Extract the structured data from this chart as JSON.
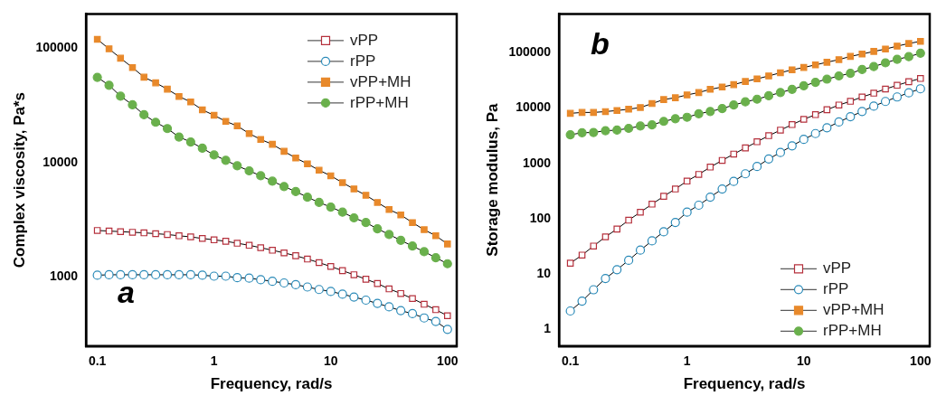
{
  "chart_data": [
    {
      "type": "line",
      "xlabel": "Frequency, rad/s",
      "ylabel": "Complex viscosity, Pa*s",
      "annotations": [
        "a"
      ],
      "log": "xy",
      "legend": "top right",
      "grid": false,
      "x": [
        0.1,
        0.126,
        0.158,
        0.2,
        0.251,
        0.316,
        0.398,
        0.501,
        0.631,
        0.794,
        1,
        1.26,
        1.58,
        2,
        2.51,
        3.16,
        3.98,
        5.01,
        6.31,
        7.94,
        10,
        12.6,
        15.8,
        20,
        25.1,
        31.6,
        39.8,
        50.1,
        63.1,
        79.4,
        100
      ],
      "xlim": [
        0.08,
        120
      ],
      "xticks": [
        0.1,
        1,
        10,
        100
      ],
      "ylim": [
        250,
        200000
      ],
      "yticks": [
        1000,
        10000,
        100000
      ],
      "series": [
        {
          "name": "vPP",
          "color": "#b5303c",
          "marker": "square",
          "values": [
            2560,
            2530,
            2500,
            2470,
            2440,
            2400,
            2360,
            2300,
            2250,
            2180,
            2120,
            2060,
            1980,
            1900,
            1810,
            1720,
            1630,
            1540,
            1440,
            1340,
            1240,
            1140,
            1050,
            960,
            880,
            790,
            720,
            650,
            580,
            520,
            460
          ]
        },
        {
          "name": "rPP",
          "color": "#2a8ab8",
          "marker": "circle",
          "values": [
            1040,
            1050,
            1050,
            1050,
            1050,
            1050,
            1050,
            1050,
            1050,
            1040,
            1020,
            1020,
            990,
            980,
            950,
            920,
            890,
            860,
            820,
            780,
            750,
            710,
            670,
            630,
            590,
            550,
            510,
            480,
            440,
            410,
            350
          ]
        },
        {
          "name": "vPP+MH",
          "color": "#e8892b",
          "marker": "square",
          "values": [
            120000,
            99000,
            82000,
            68000,
            56000,
            50000,
            44000,
            38000,
            34000,
            29000,
            26000,
            23000,
            21000,
            18000,
            16000,
            14500,
            12600,
            11000,
            9800,
            8600,
            7700,
            6700,
            5900,
            5200,
            4500,
            3900,
            3500,
            3000,
            2600,
            2300,
            1950
          ]
        },
        {
          "name": "rPP+MH",
          "color": "#6ab04c",
          "marker": "circle",
          "values": [
            55800,
            47600,
            38200,
            32100,
            26300,
            22600,
            19900,
            16800,
            15200,
            13400,
            11700,
            10500,
            9400,
            8500,
            7700,
            6900,
            6200,
            5600,
            5000,
            4500,
            4100,
            3700,
            3300,
            3000,
            2650,
            2360,
            2100,
            1870,
            1670,
            1480,
            1310
          ]
        }
      ]
    },
    {
      "type": "line",
      "xlabel": "Frequency, rad/s",
      "ylabel": "Storage modulus, Pa",
      "annotations": [
        "b"
      ],
      "log": "xy",
      "legend": "bottom right",
      "grid": false,
      "x": [
        0.1,
        0.126,
        0.158,
        0.2,
        0.251,
        0.316,
        0.398,
        0.501,
        0.631,
        0.794,
        1,
        1.26,
        1.58,
        2,
        2.51,
        3.16,
        3.98,
        5.01,
        6.31,
        7.94,
        10,
        12.6,
        15.8,
        20,
        25.1,
        31.6,
        39.8,
        50.1,
        63.1,
        79.4,
        100
      ],
      "xlim": [
        0.08,
        120
      ],
      "xticks": [
        0.1,
        1,
        10,
        100
      ],
      "ylim": [
        0.5,
        500000
      ],
      "yticks": [
        1,
        10,
        100,
        1000,
        10000,
        100000
      ],
      "series": [
        {
          "name": "vPP",
          "color": "#b5303c",
          "marker": "square",
          "values": [
            15.7,
            22,
            32,
            47,
            65,
            94,
            131,
            183,
            254,
            344,
            478,
            631,
            855,
            1130,
            1470,
            1900,
            2450,
            3160,
            3980,
            5010,
            6240,
            7570,
            9300,
            11300,
            13200,
            15800,
            18500,
            22000,
            25700,
            29800,
            34100
          ]
        },
        {
          "name": "rPP",
          "color": "#2a8ab8",
          "marker": "circle",
          "values": [
            2.15,
            3.24,
            5.2,
            8.3,
            12,
            17.7,
            27,
            39.8,
            58,
            85.5,
            131,
            175,
            245,
            344,
            472,
            647,
            875,
            1200,
            1570,
            2070,
            2710,
            3450,
            4390,
            5590,
            6960,
            8650,
            10800,
            13100,
            15800,
            18800,
            22200
          ]
        },
        {
          "name": "vPP+MH",
          "color": "#e8892b",
          "marker": "square",
          "values": [
            8000,
            8300,
            8300,
            8600,
            9000,
            9500,
            10200,
            12000,
            14200,
            15300,
            17200,
            19000,
            21700,
            23900,
            26400,
            30100,
            33600,
            37900,
            43300,
            48900,
            53900,
            60100,
            67000,
            74800,
            85500,
            94200,
            105000,
            116000,
            131000,
            146000,
            160000
          ]
        },
        {
          "name": "rPP+MH",
          "color": "#6ab04c",
          "marker": "circle",
          "values": [
            3280,
            3570,
            3610,
            3880,
            3980,
            4280,
            4720,
            4950,
            5730,
            6390,
            6790,
            7850,
            8650,
            9760,
            11300,
            12900,
            14400,
            16600,
            19000,
            21700,
            25100,
            29100,
            33200,
            37900,
            42300,
            49500,
            55900,
            65400,
            75700,
            84400,
            97500
          ]
        }
      ]
    }
  ]
}
